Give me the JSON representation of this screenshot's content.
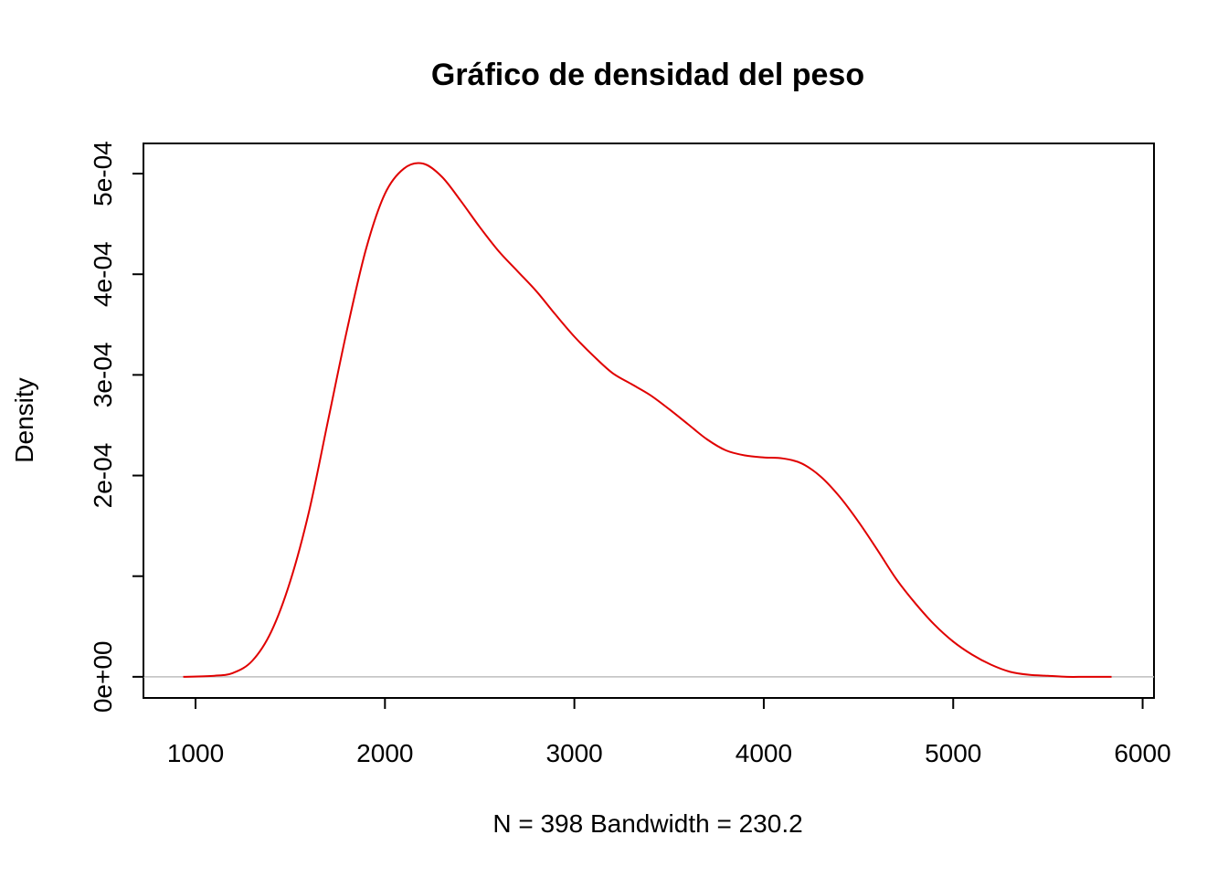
{
  "chart_data": {
    "type": "line",
    "title": "Gráfico de densidad del peso",
    "xlabel": "N = 398   Bandwidth = 230.2",
    "ylabel": "Density",
    "xlim": [
      725,
      6060
    ],
    "ylim": [
      -2.1e-05,
      0.00053
    ],
    "x_ticks": [
      1000,
      2000,
      3000,
      4000,
      5000,
      6000
    ],
    "x_tick_labels": [
      "1000",
      "2000",
      "3000",
      "4000",
      "5000",
      "6000"
    ],
    "y_ticks": [
      0,
      0.0001,
      0.0002,
      0.0003,
      0.0004,
      0.0005
    ],
    "y_tick_labels": [
      "0e+00",
      "",
      "2e-04",
      "3e-04",
      "4e-04",
      "5e-04"
    ],
    "zero_line": true,
    "grid": false,
    "colors": {
      "line": "#e00000",
      "zero_line": "#bebebe",
      "axis": "#000000"
    },
    "series": [
      {
        "x": [
          935,
          1100,
          1200,
          1300,
          1400,
          1500,
          1600,
          1700,
          1800,
          1900,
          2000,
          2100,
          2200,
          2300,
          2400,
          2500,
          2600,
          2700,
          2800,
          2900,
          3000,
          3100,
          3200,
          3300,
          3400,
          3500,
          3600,
          3700,
          3800,
          3900,
          4000,
          4100,
          4200,
          4300,
          4400,
          4500,
          4600,
          4700,
          4800,
          4900,
          5000,
          5100,
          5200,
          5300,
          5400,
          5500,
          5600,
          5700,
          5836
        ],
        "y": [
          0,
          1e-06,
          4e-06,
          1.6e-05,
          4.5e-05,
          9.5e-05,
          0.000165,
          0.000255,
          0.000345,
          0.000425,
          0.00048,
          0.000505,
          0.00051,
          0.000497,
          0.000473,
          0.000447,
          0.000423,
          0.000403,
          0.000383,
          0.00036,
          0.000338,
          0.000319,
          0.000302,
          0.000291,
          0.00028,
          0.000266,
          0.000251,
          0.000236,
          0.000225,
          0.00022,
          0.000218,
          0.000217,
          0.000212,
          0.000199,
          0.000179,
          0.000154,
          0.000126,
          9.7e-05,
          7.3e-05,
          5.2e-05,
          3.5e-05,
          2.2e-05,
          1.2e-05,
          5e-06,
          2e-06,
          1e-06,
          0,
          0,
          0
        ]
      }
    ]
  }
}
